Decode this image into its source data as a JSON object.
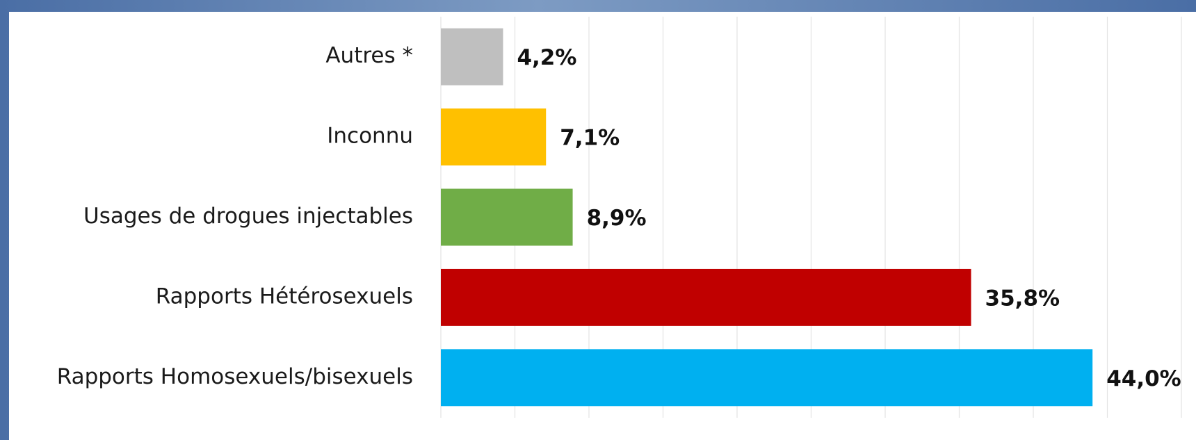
{
  "chart_data": {
    "type": "bar",
    "orientation": "horizontal",
    "categories": [
      "Autres *",
      "Inconnu",
      "Usages de drogues injectables",
      "Rapports Hétérosexuels",
      "Rapports Homosexuels/bisexuels"
    ],
    "values": [
      4.2,
      7.1,
      8.9,
      35.8,
      44.0
    ],
    "value_labels": [
      "4,2%",
      "7,1%",
      "8,9%",
      "35,8%",
      "44,0%"
    ],
    "colors": [
      "#bfbfbf",
      "#ffc000",
      "#70ad47",
      "#c00000",
      "#00b0f0"
    ],
    "xlim": [
      0,
      50
    ],
    "xticks": [
      0,
      5,
      10,
      15,
      20,
      25,
      30,
      35,
      40,
      45,
      50
    ],
    "grid": true
  }
}
